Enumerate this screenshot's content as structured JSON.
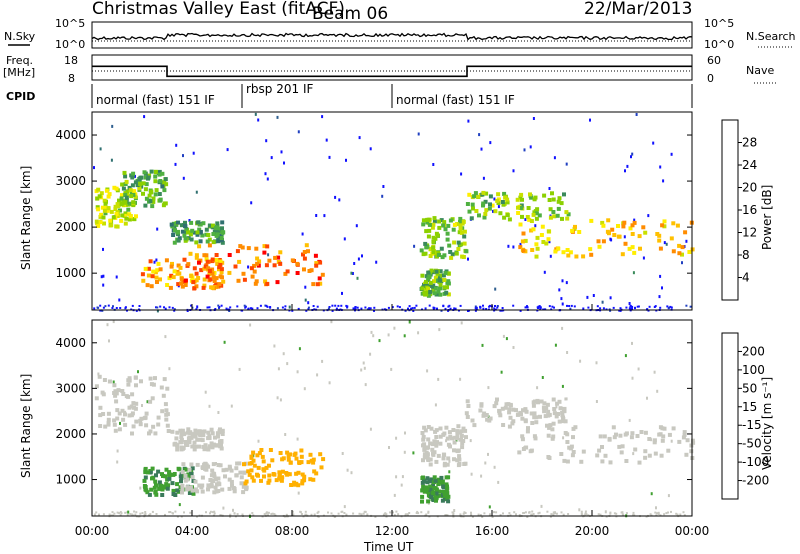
{
  "header": {
    "radar": "Christmas Valley East (fitACF)",
    "beam": "Beam 06",
    "date": "22/Mar/2013"
  },
  "status_panels": {
    "nsky_label": "N.Sky",
    "nsearch_label": "N.Search",
    "noise_ticks_left": [
      "10^5",
      "10^0"
    ],
    "noise_ticks_right": [
      "10^5",
      "10^0"
    ],
    "freq_label_1": "Freq.",
    "freq_label_2": "[MHz]",
    "freq_ticks": [
      "18",
      "8"
    ],
    "nave_label": "Nave",
    "nave_ticks": [
      "60",
      "0"
    ],
    "cpid_label": "CPID",
    "cpid_segments": [
      {
        "label": "normal (fast) 151 IF",
        "start_hr": 0,
        "end_hr": 6.0
      },
      {
        "label": "rbsp 201 IF",
        "start_hr": 6.0,
        "end_hr": 12.0
      },
      {
        "label": "normal (fast) 151 IF",
        "start_hr": 12.0,
        "end_hr": 24
      }
    ],
    "freq_mhz": [
      {
        "t": 0,
        "f": 13.5
      },
      {
        "t": 3.0,
        "f": 9.5
      },
      {
        "t": 15.0,
        "f": 13.5
      },
      {
        "t": 24,
        "f": 13.5
      }
    ]
  },
  "colorbars": {
    "power": {
      "title": "Power [dB]",
      "ticks": [
        "28",
        "24",
        "20",
        "16",
        "12",
        "8",
        "4"
      ],
      "colors": [
        "#ff0000",
        "#ff4500",
        "#ff8c00",
        "#ffc000",
        "#ffee00",
        "#c8e000",
        "#8cd000",
        "#4fb040",
        "#3a8a5a",
        "#307070",
        "#2f5f8f",
        "#2040c0",
        "#1010ff"
      ]
    },
    "velocity": {
      "title": "Velocity [m s⁻¹]",
      "ticks": [
        "200",
        "100",
        "50",
        "15",
        "-15",
        "-50",
        "-100",
        "-200"
      ],
      "colors": [
        "#2020d0",
        "#3050b0",
        "#3a7a5a",
        "#40a030",
        "#80e040",
        "#c8c8c0",
        "#ffb000",
        "#ff8000",
        "#ff5000",
        "#ff0000"
      ]
    }
  },
  "chart_data": [
    {
      "type": "heatmap",
      "name": "Power",
      "ylabel": "Slant Range [km]",
      "xlabel": "",
      "ylim": [
        200,
        4500
      ],
      "yticks": [
        1000,
        2000,
        3000,
        4000
      ],
      "xlim": [
        0,
        24
      ],
      "patches": [
        {
          "t0": 0.1,
          "t1": 1.7,
          "r0": 2050,
          "r1": 2900,
          "v": 16
        },
        {
          "t0": 1.1,
          "t1": 2.9,
          "r0": 2500,
          "r1": 3250,
          "v": 12
        },
        {
          "t0": 3.1,
          "t1": 5.2,
          "r0": 1700,
          "r1": 2150,
          "v": 10
        },
        {
          "t0": 1.9,
          "t1": 5.2,
          "r0": 700,
          "r1": 1350,
          "v": 22
        },
        {
          "t0": 3.6,
          "t1": 9.2,
          "r0": 800,
          "r1": 1650,
          "v": 24
        },
        {
          "t0": 13.1,
          "t1": 14.9,
          "r0": 1350,
          "r1": 2250,
          "v": 14
        },
        {
          "t0": 13.1,
          "t1": 14.2,
          "r0": 550,
          "r1": 1100,
          "v": 12
        },
        {
          "t0": 14.9,
          "t1": 19.0,
          "r0": 2200,
          "r1": 2800,
          "v": 14
        },
        {
          "t0": 17.0,
          "t1": 24.0,
          "r0": 1400,
          "r1": 2200,
          "v": 20
        }
      ],
      "colorbar_label": "Power [dB]"
    },
    {
      "type": "heatmap",
      "name": "Velocity",
      "ylabel": "Slant Range [km]",
      "xlabel": "Time UT",
      "ylim": [
        200,
        4500
      ],
      "yticks": [
        1000,
        2000,
        3000,
        4000
      ],
      "xlim": [
        0,
        24
      ],
      "xticks": [
        "00:00",
        "04:00",
        "08:00",
        "12:00",
        "16:00",
        "20:00",
        "00:00"
      ],
      "patches": [
        {
          "t0": 0.1,
          "t1": 3.0,
          "r0": 2050,
          "r1": 3300,
          "v": 0
        },
        {
          "t0": 3.1,
          "t1": 5.2,
          "r0": 1700,
          "r1": 2150,
          "v": 0
        },
        {
          "t0": 2.0,
          "t1": 4.0,
          "r0": 700,
          "r1": 1300,
          "v": 30
        },
        {
          "t0": 3.5,
          "t1": 6.2,
          "r0": 750,
          "r1": 1400,
          "v": 0
        },
        {
          "t0": 6.0,
          "t1": 9.2,
          "r0": 900,
          "r1": 1700,
          "v": -40
        },
        {
          "t0": 13.1,
          "t1": 14.9,
          "r0": 1350,
          "r1": 2250,
          "v": 0
        },
        {
          "t0": 13.1,
          "t1": 14.2,
          "r0": 550,
          "r1": 1100,
          "v": 30
        },
        {
          "t0": 14.9,
          "t1": 19.0,
          "r0": 2200,
          "r1": 2800,
          "v": 0
        },
        {
          "t0": 17.0,
          "t1": 24.0,
          "r0": 1400,
          "r1": 2200,
          "v": 0
        }
      ],
      "colorbar_label": "Velocity [m s⁻¹]"
    }
  ]
}
